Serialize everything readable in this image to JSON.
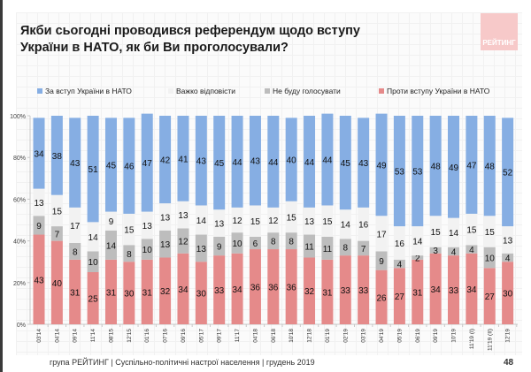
{
  "title": "Якби сьогодні проводився референдум щодо вступу України в НАТО, як би Ви проголосували?",
  "logo_text": "РЕЙТИНГ",
  "footer": "група РЕЙТИНГ | Суспільно-політичні настрої населення  | грудень 2019",
  "page_number": "48",
  "chart_data": {
    "type": "bar",
    "stacked": true,
    "percent_stacked": true,
    "title": "Якби сьогодні проводився референдум щодо вступу України в НАТО, як би Ви проголосували?",
    "xlabel": "",
    "ylabel": "",
    "ylim": [
      0,
      100
    ],
    "yticks": [
      "0%",
      "20%",
      "40%",
      "60%",
      "80%",
      "100%"
    ],
    "grid": false,
    "legend_position": "top",
    "categories": [
      "03'14",
      "04'14",
      "09'14",
      "11'14",
      "08'15",
      "12'15",
      "01'16",
      "07'16",
      "09'16",
      "05'17",
      "09'17",
      "11'17",
      "04'18",
      "06'18",
      "10'18",
      "12'18",
      "01'19",
      "02'19",
      "03'19",
      "04'19",
      "05'19",
      "06'19",
      "09'19",
      "10'19",
      "11'19 (I)",
      "11'19 (II)",
      "12'19"
    ],
    "series": [
      {
        "name": "Проти вступу України в НАТО",
        "color": "#e58a8a",
        "values": [
          43,
          40,
          31,
          25,
          31,
          30,
          31,
          32,
          34,
          30,
          33,
          34,
          36,
          36,
          36,
          32,
          31,
          33,
          33,
          26,
          27,
          31,
          34,
          33,
          34,
          27,
          30
        ]
      },
      {
        "name": "Не буду голосувати",
        "color": "#bdbdbd",
        "values": [
          9,
          7,
          8,
          10,
          14,
          8,
          10,
          13,
          12,
          13,
          9,
          10,
          6,
          8,
          8,
          11,
          11,
          8,
          7,
          9,
          4,
          2,
          3,
          4,
          4,
          10,
          4
        ]
      },
      {
        "name": "Важко відповісти",
        "color": "#f2f2f2",
        "values": [
          13,
          15,
          17,
          14,
          9,
          15,
          13,
          13,
          13,
          14,
          13,
          12,
          15,
          12,
          15,
          13,
          15,
          14,
          16,
          17,
          16,
          14,
          15,
          14,
          15,
          15,
          13
        ]
      },
      {
        "name": "За вступ України в НАТО",
        "color": "#86aee3",
        "values": [
          34,
          38,
          43,
          51,
          45,
          46,
          47,
          42,
          41,
          43,
          45,
          44,
          43,
          44,
          40,
          44,
          44,
          45,
          43,
          49,
          53,
          53,
          48,
          49,
          47,
          48,
          52
        ]
      }
    ],
    "legend_order": [
      "За вступ України в НАТО",
      "Важко відповісти",
      "Не буду голосувати",
      "Проти вступу України в НАТО"
    ]
  }
}
